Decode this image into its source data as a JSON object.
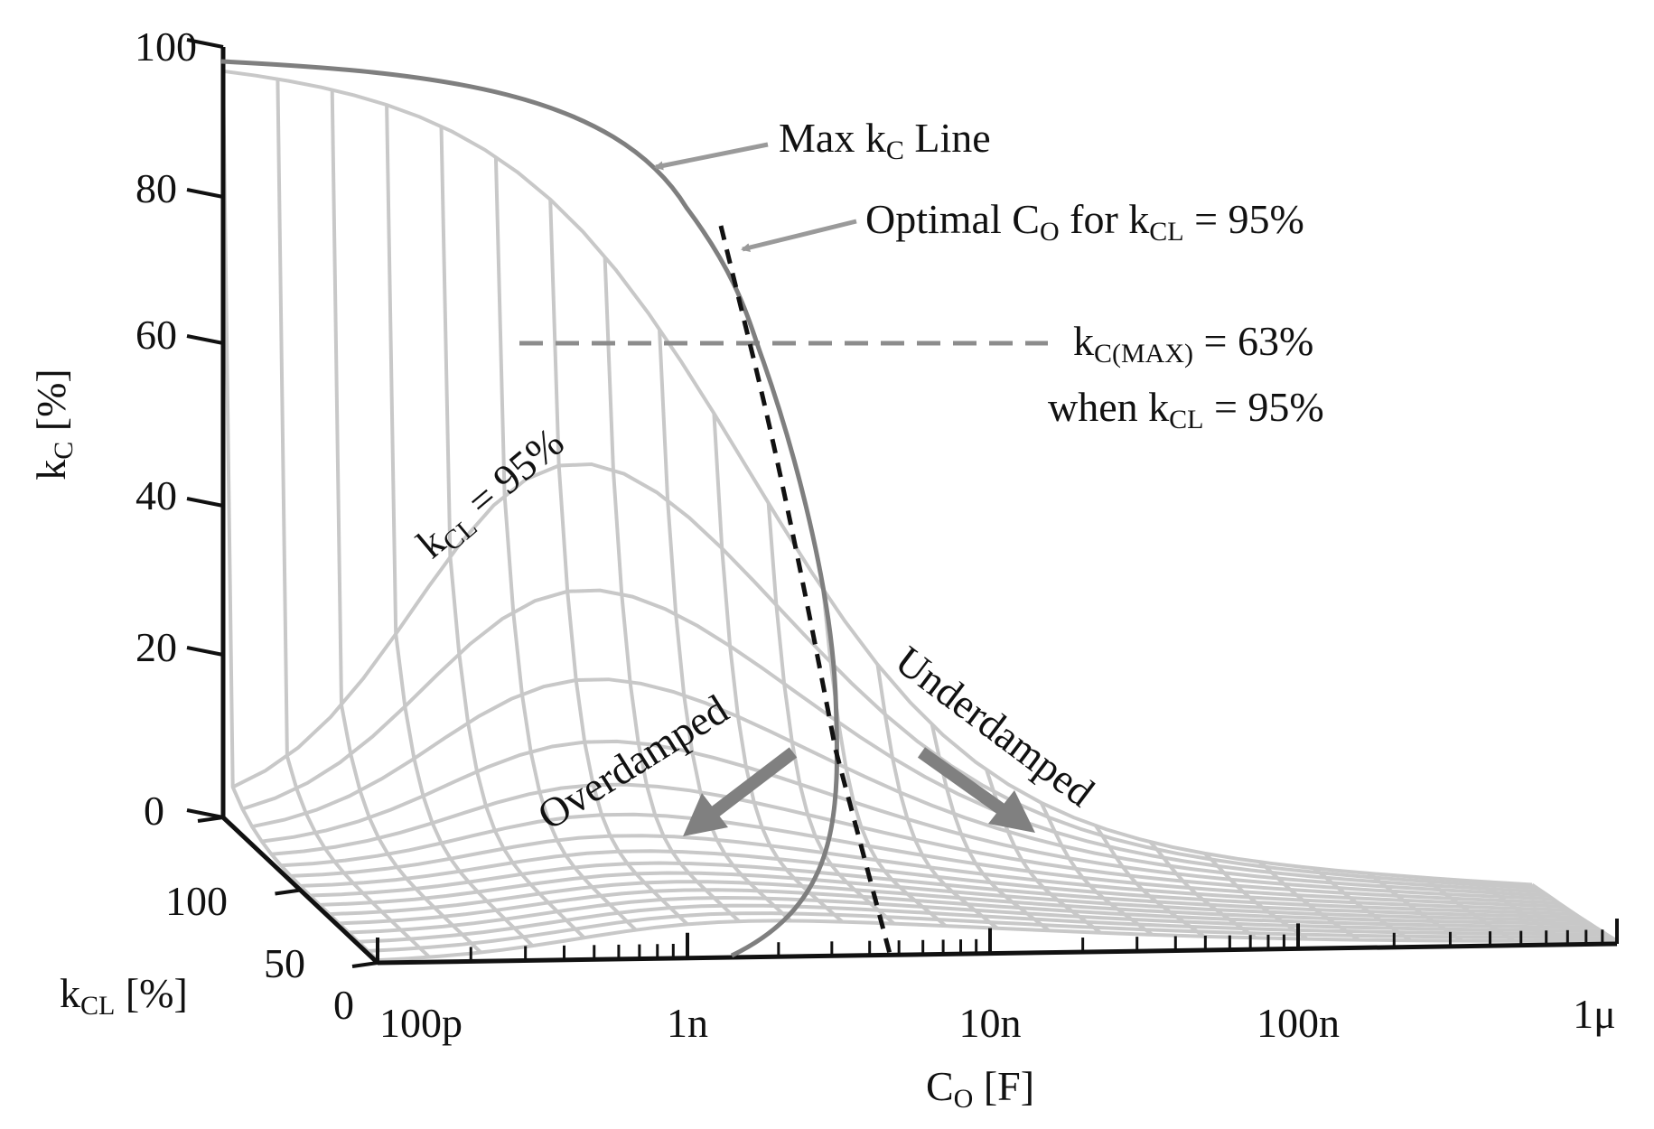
{
  "chart_data": {
    "type": "surface",
    "title": "",
    "xlabel": {
      "main": "C",
      "sub": "O",
      "unit": " [F]"
    },
    "ylabel": {
      "main": "k",
      "sub": "C",
      "unit": " [%]"
    },
    "zlabel": {
      "main": "k",
      "sub": "CL",
      "unit": " [%]"
    },
    "x_axis": {
      "scale": "log",
      "range": [
        1e-10,
        1e-06
      ],
      "tick_values": [
        1e-10,
        1e-09,
        1e-08,
        1e-07,
        1e-06
      ],
      "tick_labels": [
        "100p",
        "1n",
        "10n",
        "100n",
        "1μ"
      ]
    },
    "y_axis": {
      "range": [
        0,
        100
      ],
      "tick_values": [
        0,
        20,
        40,
        60,
        80,
        100
      ],
      "tick_labels": [
        "0",
        "20",
        "40",
        "60",
        "80",
        "100"
      ]
    },
    "depth_axis": {
      "range": [
        0,
        100
      ],
      "tick_values": [
        0,
        50,
        100
      ],
      "tick_labels": [
        "0",
        "50",
        "100"
      ]
    },
    "series": [
      {
        "name": "Max kC Line",
        "points": [
          {
            "co": 1e-10,
            "kc": 98
          },
          {
            "co": 2e-10,
            "kc": 97
          },
          {
            "co": 4e-10,
            "kc": 94
          },
          {
            "co": 6e-10,
            "kc": 90
          },
          {
            "co": 9e-10,
            "kc": 83
          },
          {
            "co": 1.2e-09,
            "kc": 75
          },
          {
            "co": 1.6e-09,
            "kc": 63
          },
          {
            "co": 2e-09,
            "kc": 50
          },
          {
            "co": 2.5e-09,
            "kc": 35
          },
          {
            "co": 3e-09,
            "kc": 18
          },
          {
            "co": 3.2e-09,
            "kc": 5
          },
          {
            "co": 3e-09,
            "kc": 0
          }
        ]
      },
      {
        "name": "Optimal CO for kCL = 95%",
        "points": [
          {
            "co": 1.5e-09,
            "kc": 80
          },
          {
            "co": 1.6e-09,
            "kc": 63
          },
          {
            "co": 2.3e-09,
            "kc": 40
          },
          {
            "co": 3e-09,
            "kc": 20
          },
          {
            "co": 4.5e-09,
            "kc": 0
          }
        ]
      }
    ],
    "reference_line": {
      "name": "kC(MAX) = 63% when kCL = 95%",
      "kc": 63,
      "kcl": 95
    },
    "annotations": {
      "max_line": {
        "main": "Max k",
        "sub": "C",
        "rest": " Line"
      },
      "optimal": {
        "a": "Optimal C",
        "a_sub": "O",
        "b": " for k",
        "b_sub": "CL",
        "c": " = 95%"
      },
      "kcmax": {
        "a": "k",
        "a_sub": "C(MAX)",
        "b": " = 63%"
      },
      "when": {
        "a": "when k",
        "a_sub": "CL",
        "b": " =  95%"
      },
      "kcl_curve": {
        "a": "k",
        "a_sub": "CL",
        "b": " = 95%"
      },
      "overdamped": "Overdamped",
      "underdamped": "Underdamped"
    },
    "colors": {
      "mesh": "#c8c8c8",
      "max_line": "#7f7f7f",
      "reference": "#8c8c8c",
      "arrow": "#808080",
      "axis": "#111111"
    }
  }
}
